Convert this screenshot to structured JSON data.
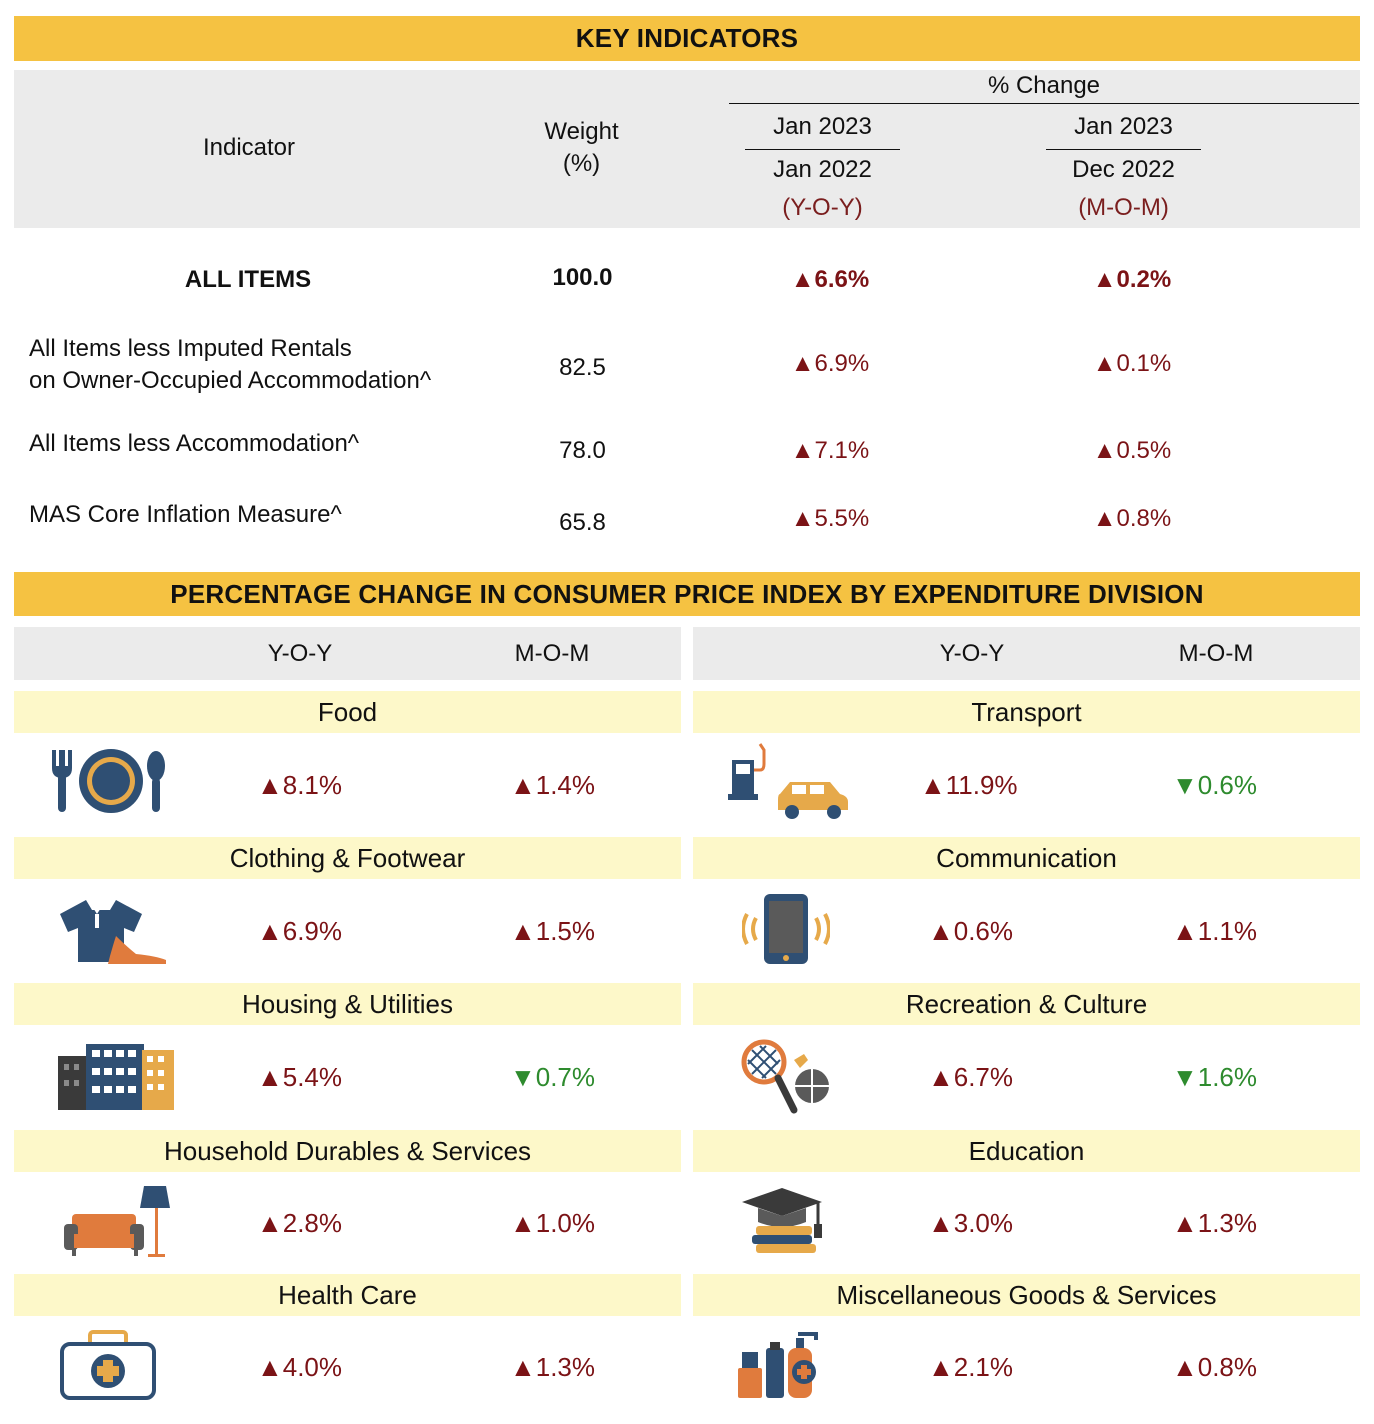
{
  "key_indicators": {
    "title": "KEY INDICATORS",
    "header": {
      "indicator": "Indicator",
      "weight_l1": "Weight",
      "weight_l2": "(%)",
      "pct_change": "% Change",
      "yoy_top": "Jan 2023",
      "yoy_bottom": "Jan 2022",
      "yoy_tag": "(Y-O-Y)",
      "mom_top": "Jan 2023",
      "mom_bottom": "Dec 2022",
      "mom_tag": "(M-O-M)"
    },
    "rows": [
      {
        "label": "ALL ITEMS",
        "label2": "",
        "weight": "100.0",
        "yoy": "▲6.6%",
        "mom": "▲0.2%"
      },
      {
        "label": "All Items less Imputed Rentals",
        "label2": "on Owner-Occupied Accommodation^",
        "weight": "82.5",
        "yoy": "▲6.9%",
        "mom": "▲0.1%"
      },
      {
        "label": "All Items less Accommodation^",
        "label2": "",
        "weight": "78.0",
        "yoy": "▲7.1%",
        "mom": "▲0.5%"
      },
      {
        "label": "MAS Core Inflation Measure^",
        "label2": "",
        "weight": "65.8",
        "yoy": "▲5.5%",
        "mom": "▲0.8%"
      }
    ]
  },
  "divisions": {
    "title": "PERCENTAGE CHANGE IN CONSUMER PRICE INDEX BY EXPENDITURE DIVISION",
    "yoy_label": "Y-O-Y",
    "mom_label": "M-O-M",
    "left": [
      {
        "name": "Food",
        "icon": "food-icon",
        "yoy": "▲8.1%",
        "yoy_dir": "up",
        "mom": "▲1.4%",
        "mom_dir": "up"
      },
      {
        "name": "Clothing & Footwear",
        "icon": "clothing-icon",
        "yoy": "▲6.9%",
        "yoy_dir": "up",
        "mom": "▲1.5%",
        "mom_dir": "up"
      },
      {
        "name": "Housing & Utilities",
        "icon": "housing-icon",
        "yoy": "▲5.4%",
        "yoy_dir": "up",
        "mom": "▼0.7%",
        "mom_dir": "down"
      },
      {
        "name": "Household Durables & Services",
        "icon": "sofa-icon",
        "yoy": "▲2.8%",
        "yoy_dir": "up",
        "mom": "▲1.0%",
        "mom_dir": "up"
      },
      {
        "name": "Health Care",
        "icon": "first-aid-icon",
        "yoy": "▲4.0%",
        "yoy_dir": "up",
        "mom": "▲1.3%",
        "mom_dir": "up"
      }
    ],
    "right": [
      {
        "name": "Transport",
        "icon": "transport-icon",
        "yoy": "▲11.9%",
        "yoy_dir": "up",
        "mom": "▼0.6%",
        "mom_dir": "down"
      },
      {
        "name": "Communication",
        "icon": "phone-icon",
        "yoy": "▲0.6%",
        "yoy_dir": "up",
        "mom": "▲1.1%",
        "mom_dir": "up"
      },
      {
        "name": "Recreation & Culture",
        "icon": "recreation-icon",
        "yoy": "▲6.7%",
        "yoy_dir": "up",
        "mom": "▼1.6%",
        "mom_dir": "down"
      },
      {
        "name": "Education",
        "icon": "education-icon",
        "yoy": "▲3.0%",
        "yoy_dir": "up",
        "mom": "▲1.3%",
        "mom_dir": "up"
      },
      {
        "name": "Miscellaneous Goods & Services",
        "icon": "cosmetics-icon",
        "yoy": "▲2.1%",
        "yoy_dir": "up",
        "mom": "▲0.8%",
        "mom_dir": "up"
      }
    ]
  },
  "colors": {
    "banner": "#f5c242",
    "header_gray": "#ebebeb",
    "category_band": "#fdf8c9",
    "increase": "#7b1316",
    "decrease": "#2e8b2e"
  }
}
